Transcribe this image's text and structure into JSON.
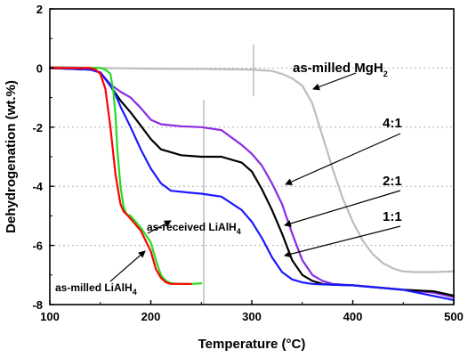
{
  "chart_data": {
    "type": "line",
    "xlabel": "Temperature (°C)",
    "ylabel": "Dehydrogenation (wt.%)",
    "xlim": [
      100,
      500
    ],
    "ylim": [
      -8,
      2
    ],
    "xticks": [
      100,
      200,
      300,
      400,
      500
    ],
    "yticks": [
      2,
      0,
      -2,
      -4,
      -6,
      -8
    ],
    "grid": "horizontal dotted",
    "legend": "none",
    "series": [
      {
        "label": "as-milled MgH2",
        "color": "#bdbdbd",
        "x": [
          100,
          150,
          200,
          250,
          300,
          320,
          330,
          340,
          350,
          360,
          370,
          380,
          390,
          400,
          410,
          420,
          430,
          440,
          450,
          460,
          480,
          500
        ],
        "y": [
          0.05,
          0,
          -0.02,
          -0.03,
          -0.05,
          -0.1,
          -0.2,
          -0.35,
          -0.6,
          -1.2,
          -2.3,
          -3.4,
          -4.4,
          -5.2,
          -5.85,
          -6.3,
          -6.6,
          -6.78,
          -6.88,
          -6.9,
          -6.9,
          -6.88
        ]
      },
      {
        "label": "4:1",
        "color": "#8a2be2",
        "x": [
          100,
          140,
          150,
          160,
          170,
          180,
          190,
          200,
          210,
          230,
          250,
          270,
          290,
          300,
          310,
          320,
          330,
          340,
          350,
          360,
          370,
          380,
          400,
          450,
          480,
          500
        ],
        "y": [
          0,
          -0.05,
          -0.15,
          -0.55,
          -0.8,
          -1.0,
          -1.35,
          -1.75,
          -1.9,
          -1.97,
          -2.0,
          -2.1,
          -2.6,
          -2.9,
          -3.3,
          -3.9,
          -4.6,
          -5.6,
          -6.5,
          -7.0,
          -7.2,
          -7.3,
          -7.35,
          -7.5,
          -7.6,
          -7.75
        ]
      },
      {
        "label": "2:1",
        "color": "#000000",
        "x": [
          100,
          140,
          150,
          160,
          170,
          180,
          190,
          200,
          210,
          230,
          250,
          270,
          290,
          300,
          310,
          320,
          330,
          340,
          350,
          360,
          370,
          380,
          400,
          450,
          480,
          500
        ],
        "y": [
          0,
          -0.05,
          -0.15,
          -0.6,
          -1.1,
          -1.5,
          -1.95,
          -2.4,
          -2.75,
          -2.95,
          -3.0,
          -3.0,
          -3.2,
          -3.5,
          -4.1,
          -4.8,
          -5.6,
          -6.5,
          -7.0,
          -7.2,
          -7.3,
          -7.33,
          -7.35,
          -7.5,
          -7.55,
          -7.7
        ]
      },
      {
        "label": "1:1",
        "color": "#1a1aff",
        "x": [
          100,
          140,
          150,
          160,
          165,
          170,
          180,
          190,
          200,
          210,
          220,
          240,
          250,
          270,
          290,
          300,
          310,
          320,
          330,
          340,
          350,
          360,
          370,
          400,
          450,
          500
        ],
        "y": [
          0,
          -0.05,
          -0.15,
          -0.6,
          -0.9,
          -1.3,
          -2.0,
          -2.75,
          -3.4,
          -3.9,
          -4.15,
          -4.22,
          -4.25,
          -4.35,
          -4.8,
          -5.2,
          -5.75,
          -6.4,
          -6.9,
          -7.15,
          -7.25,
          -7.3,
          -7.32,
          -7.35,
          -7.5,
          -7.85
        ]
      },
      {
        "label": "as-received LiAlH4",
        "color": "#22dd22",
        "x": [
          100,
          150,
          155,
          160,
          163,
          165,
          167,
          170,
          173,
          176,
          180,
          190,
          200,
          205,
          210,
          215,
          220,
          230,
          240,
          250
        ],
        "y": [
          0,
          0,
          -0.05,
          -0.2,
          -0.8,
          -1.6,
          -2.8,
          -4.0,
          -4.7,
          -4.95,
          -5.0,
          -5.4,
          -5.9,
          -6.5,
          -7.0,
          -7.2,
          -7.28,
          -7.3,
          -7.3,
          -7.28
        ]
      },
      {
        "label": "as-milled LiAlH4",
        "color": "#ff0000",
        "x": [
          100,
          140,
          145,
          150,
          155,
          160,
          165,
          170,
          173,
          176,
          180,
          190,
          200,
          205,
          210,
          215,
          220,
          230,
          240
        ],
        "y": [
          0,
          0,
          -0.05,
          -0.2,
          -0.7,
          -2.0,
          -3.6,
          -4.6,
          -4.85,
          -4.95,
          -5.1,
          -5.5,
          -6.2,
          -6.8,
          -7.1,
          -7.25,
          -7.3,
          -7.3,
          -7.3
        ]
      }
    ],
    "annotations": {
      "mgh2_main": "as-milled MgH",
      "mgh2_sub": "2",
      "ratio_41": "4:1",
      "ratio_21": "2:1",
      "ratio_11": "1:1",
      "received_main": "as-received LiAlH",
      "received_sub": "4",
      "milled_main": "as-milled LiAlH",
      "milled_sub": "4"
    }
  }
}
